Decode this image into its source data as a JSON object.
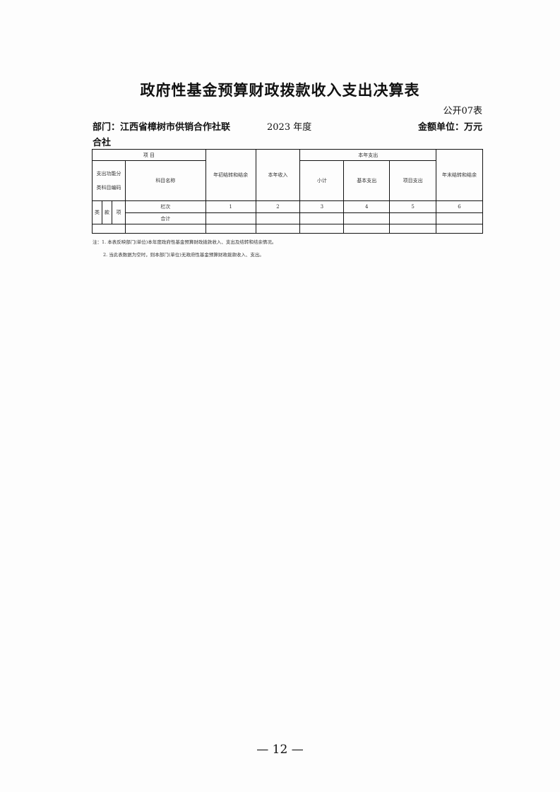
{
  "title": "政府性基金预算财政拨款收入支出决算表",
  "table_no": "公开07表",
  "department_line1": "部门：江西省樟树市供销合作社联",
  "department_line2": "合社",
  "year": "2023 年度",
  "unit": "金额单位：万元",
  "table": {
    "project": "项 目",
    "code_header": "支出功能分类科目编码",
    "name_header": "科目名称",
    "opening": "年初结转和结余",
    "income": "本年收入",
    "expense": "本年支出",
    "subtotal": "小计",
    "basic": "基本支出",
    "project_exp": "项目支出",
    "closing": "年末结转和结余",
    "lei": "类",
    "kuan": "款",
    "xiang": "项",
    "column_row": "栏次",
    "col_nums": [
      "1",
      "2",
      "3",
      "4",
      "5",
      "6"
    ],
    "total": "合计"
  },
  "notes": [
    "注：1. 本表反映部门(单位)本年度政府性基金预算财政拨款收入、支出及结转和结余情况。",
    "2. 当此表数据为空时，则本部门(单位)无政府性基金预算财政拨款收入、支出。"
  ],
  "page_number": "— 12 —"
}
